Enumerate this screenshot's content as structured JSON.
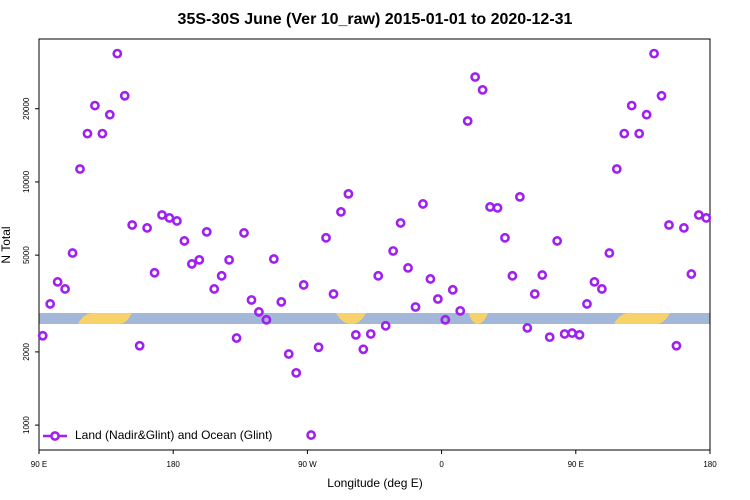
{
  "chart_data": {
    "type": "scatter",
    "title": "35S-30S June (Ver 10_raw)   2015-01-01 to 2020-12-31",
    "x_label": "Longitude (deg E)",
    "y_label": "N Total",
    "ylog": true,
    "legend": "bottomleft",
    "xlim": [
      90,
      540
    ],
    "ylim": [
      790,
      38700
    ],
    "xticks": [
      {
        "value": 90,
        "label": "90 E"
      },
      180,
      {
        "value": 270,
        "label": "90 W"
      },
      {
        "value": 360,
        "label": "0"
      },
      {
        "value": 450,
        "label": "90 E"
      },
      {
        "value": 540,
        "label": "180"
      }
    ],
    "yticks": [
      1000,
      2000,
      5000,
      10000,
      20000
    ],
    "series": [
      {
        "name": "Land (Nadir&Glint) and Ocean (Glint)",
        "color": "#a020f0",
        "x": [
          92.5,
          97.5,
          102.5,
          107.5,
          112.5,
          117.5,
          122.5,
          127.5,
          132.5,
          137.5,
          142.5,
          147.5,
          152.5,
          157.5,
          162.5,
          167.5,
          172.5,
          177.5,
          182.5,
          187.5,
          192.5,
          197.5,
          202.5,
          207.5,
          212.5,
          217.5,
          222.5,
          227.5,
          232.5,
          237.5,
          242.5,
          247.5,
          252.5,
          257.5,
          262.5,
          267.5,
          272.5,
          277.5,
          282.5,
          287.5,
          292.5,
          297.5,
          302.5,
          307.5,
          312.5,
          317.5,
          322.5,
          327.5,
          332.5,
          337.5,
          342.5,
          347.5,
          352.5,
          357.5,
          362.5,
          367.5,
          372.5,
          377.5,
          382.5,
          387.5,
          392.5,
          397.5,
          402.5,
          407.5,
          412.5,
          417.5,
          422.5,
          427.5,
          432.5,
          437.5,
          442.5,
          447.5,
          452.5,
          457.5,
          462.5,
          467.5,
          472.5,
          477.5,
          482.5,
          487.5,
          492.5,
          497.5,
          502.5,
          507.5,
          512.5,
          517.5,
          522.5,
          527.5,
          532.5,
          537.5
        ],
        "values": [
          2330,
          3150,
          3880,
          3630,
          5100,
          11300,
          15800,
          20600,
          15800,
          18900,
          33700,
          22600,
          6650,
          2120,
          6470,
          4230,
          7310,
          7110,
          6910,
          5720,
          4600,
          4780,
          6230,
          3630,
          4110,
          4780,
          2280,
          6170,
          3270,
          2920,
          2710,
          4820,
          3210,
          1960,
          1640,
          3770,
          910,
          2090,
          5890,
          3460,
          7530,
          8930,
          2350,
          2050,
          2370,
          4110,
          2560,
          5200,
          6780,
          4430,
          3060,
          8120,
          3990,
          3300,
          2710,
          3600,
          2950,
          17800,
          27000,
          23900,
          7890,
          7820,
          5890,
          4110,
          8680,
          2510,
          3460,
          4140,
          2300,
          5720,
          2370,
          2390,
          2350,
          3150,
          3880,
          3630,
          5100,
          11300,
          15800,
          20600,
          15800,
          18900,
          33700,
          22600,
          6650,
          2120,
          6470,
          4180,
          7310,
          7110
        ]
      }
    ]
  }
}
